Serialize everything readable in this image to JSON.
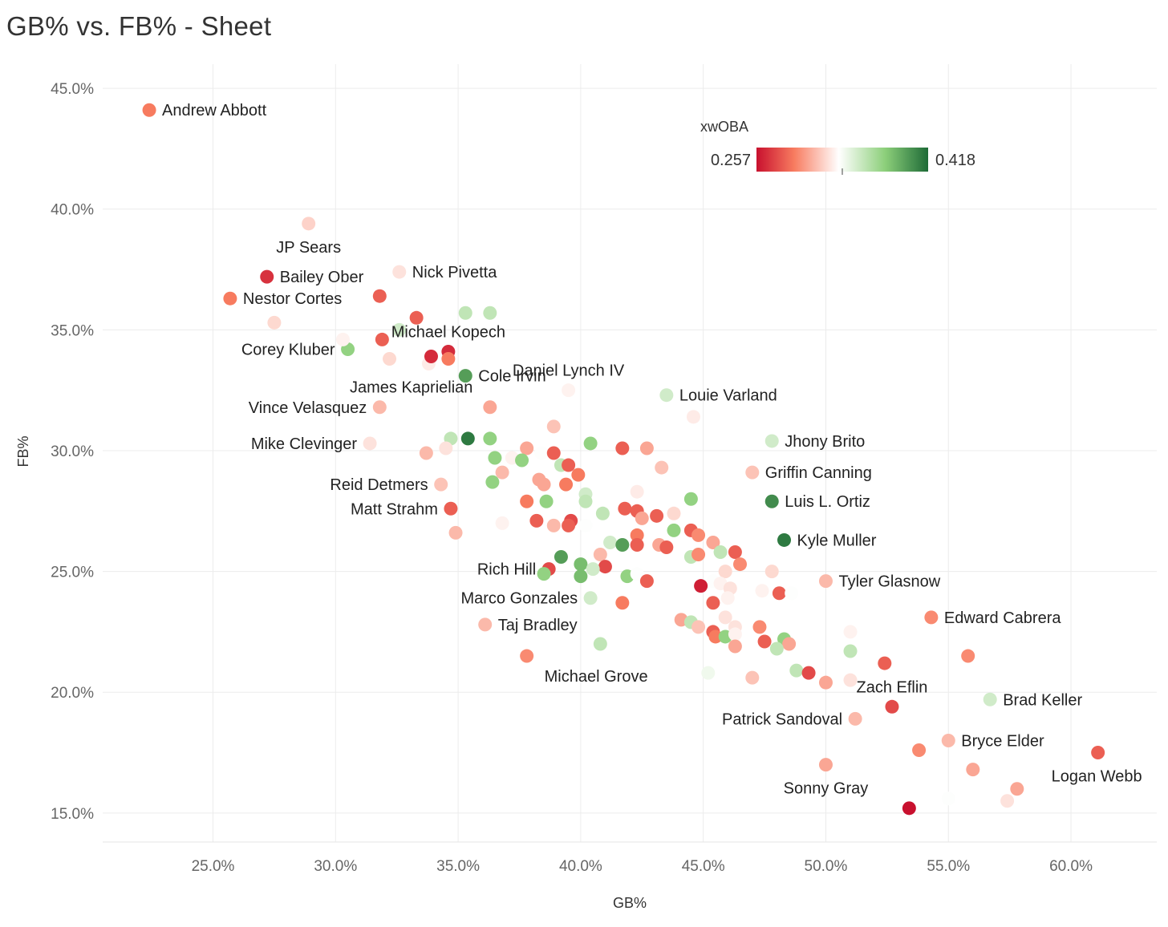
{
  "page": {
    "title": "GB% vs. FB% - Sheet"
  },
  "chart_data": {
    "type": "scatter",
    "title": "GB% vs. FB% - Sheet",
    "xlabel": "GB%",
    "ylabel": "FB%",
    "xlim": [
      20.5,
      63.5
    ],
    "ylim": [
      13.8,
      46.0
    ],
    "xticks": [
      25,
      30,
      35,
      40,
      45,
      50,
      55,
      60
    ],
    "yticks": [
      15,
      20,
      25,
      30,
      35,
      40,
      45
    ],
    "xtick_labels": [
      "25.0%",
      "30.0%",
      "35.0%",
      "40.0%",
      "45.0%",
      "50.0%",
      "55.0%",
      "60.0%"
    ],
    "ytick_labels": [
      "15.0%",
      "20.0%",
      "25.0%",
      "30.0%",
      "35.0%",
      "40.0%",
      "45.0%"
    ],
    "color_legend": {
      "title": "xwOBA",
      "min_label": "0.257",
      "max_label": "0.418",
      "min": 0.257,
      "max": 0.418,
      "colors": [
        "#c8102e",
        "#f87c60",
        "#ffffff",
        "#8ccf7a",
        "#1e6b37"
      ]
    },
    "points": [
      {
        "name": "Andrew Abbott",
        "gb": 22.4,
        "fb": 44.1,
        "xwoba": 0.292,
        "label": "Andrew Abbott",
        "anchor": "right"
      },
      {
        "name": "JP Sears",
        "gb": 28.9,
        "fb": 39.4,
        "xwoba": 0.32,
        "label": "JP Sears",
        "anchor": "below"
      },
      {
        "name": "Bailey Ober",
        "gb": 27.2,
        "fb": 37.2,
        "xwoba": 0.268,
        "label": "Bailey Ober",
        "anchor": "right"
      },
      {
        "name": "Nick Pivetta",
        "gb": 32.6,
        "fb": 37.4,
        "xwoba": 0.325,
        "label": "Nick Pivetta",
        "anchor": "right"
      },
      {
        "name": "Nestor Cortes",
        "gb": 25.7,
        "fb": 36.3,
        "xwoba": 0.292,
        "label": "Nestor Cortes",
        "anchor": "right"
      },
      {
        "name": "Michael Kopech",
        "gb": 34.6,
        "fb": 34.1,
        "xwoba": 0.266,
        "label": "Michael Kopech",
        "anchor": "above"
      },
      {
        "name": "Corey Kluber",
        "gb": 30.5,
        "fb": 34.2,
        "xwoba": 0.375,
        "label": "Corey Kluber",
        "anchor": "left"
      },
      {
        "name": "James Kaprielian",
        "gb": 33.8,
        "fb": 33.6,
        "xwoba": 0.328,
        "label": "James Kaprielian",
        "anchor": "below-left"
      },
      {
        "name": "Cole Irvin",
        "gb": 35.3,
        "fb": 33.1,
        "xwoba": 0.398,
        "label": "Cole Irvin",
        "anchor": "right"
      },
      {
        "name": "Daniel Lynch IV",
        "gb": 39.5,
        "fb": 32.5,
        "xwoba": 0.33,
        "label": "Daniel Lynch IV",
        "anchor": "above"
      },
      {
        "name": "Louie Varland",
        "gb": 43.5,
        "fb": 32.3,
        "xwoba": 0.352,
        "label": "Louie Varland",
        "anchor": "right"
      },
      {
        "name": "Vince Velasquez",
        "gb": 31.8,
        "fb": 31.8,
        "xwoba": 0.312,
        "label": "Vince Velasquez",
        "anchor": "left"
      },
      {
        "name": "Mike Clevinger",
        "gb": 31.4,
        "fb": 30.3,
        "xwoba": 0.325,
        "label": "Mike Clevinger",
        "anchor": "left"
      },
      {
        "name": "Jhony Brito",
        "gb": 47.8,
        "fb": 30.4,
        "xwoba": 0.352,
        "label": "Jhony Brito",
        "anchor": "right"
      },
      {
        "name": "Griffin Canning",
        "gb": 47.0,
        "fb": 29.1,
        "xwoba": 0.315,
        "label": "Griffin Canning",
        "anchor": "right"
      },
      {
        "name": "Reid Detmers",
        "gb": 34.3,
        "fb": 28.6,
        "xwoba": 0.315,
        "label": "Reid Detmers",
        "anchor": "left"
      },
      {
        "name": "Luis L. Ortiz",
        "gb": 47.8,
        "fb": 27.9,
        "xwoba": 0.405,
        "label": "Luis L. Ortiz",
        "anchor": "right"
      },
      {
        "name": "Matt Strahm",
        "gb": 34.7,
        "fb": 27.6,
        "xwoba": 0.283,
        "label": "Matt Strahm",
        "anchor": "left"
      },
      {
        "name": "Kyle Muller",
        "gb": 48.3,
        "fb": 26.3,
        "xwoba": 0.412,
        "label": "Kyle Muller",
        "anchor": "right"
      },
      {
        "name": "Rich Hill",
        "gb": 38.7,
        "fb": 25.1,
        "xwoba": 0.276,
        "label": "Rich Hill",
        "anchor": "left"
      },
      {
        "name": "Tyler Glasnow",
        "gb": 50.0,
        "fb": 24.6,
        "xwoba": 0.312,
        "label": "Tyler Glasnow",
        "anchor": "right"
      },
      {
        "name": "Marco Gonzales",
        "gb": 40.4,
        "fb": 23.9,
        "xwoba": 0.352,
        "label": "Marco Gonzales",
        "anchor": "left"
      },
      {
        "name": "Edward Cabrera",
        "gb": 54.3,
        "fb": 23.1,
        "xwoba": 0.297,
        "label": "Edward Cabrera",
        "anchor": "right"
      },
      {
        "name": "Taj Bradley",
        "gb": 36.1,
        "fb": 22.8,
        "xwoba": 0.312,
        "label": "Taj Bradley",
        "anchor": "right"
      },
      {
        "name": "Michael Grove",
        "gb": 37.8,
        "fb": 21.5,
        "xwoba": 0.297,
        "label": "Michael Grove",
        "anchor": "below-right"
      },
      {
        "name": "Zach Eflin",
        "gb": 52.7,
        "fb": 19.4,
        "xwoba": 0.276,
        "label": "Zach Eflin",
        "anchor": "above"
      },
      {
        "name": "Brad Keller",
        "gb": 56.7,
        "fb": 19.7,
        "xwoba": 0.352,
        "label": "Brad Keller",
        "anchor": "right"
      },
      {
        "name": "Patrick Sandoval",
        "gb": 51.2,
        "fb": 18.9,
        "xwoba": 0.312,
        "label": "Patrick Sandoval",
        "anchor": "left"
      },
      {
        "name": "Bryce Elder",
        "gb": 55.0,
        "fb": 18.0,
        "xwoba": 0.312,
        "label": "Bryce Elder",
        "anchor": "right"
      },
      {
        "name": "Logan Webb",
        "gb": 61.1,
        "fb": 17.5,
        "xwoba": 0.283,
        "label": "Logan Webb",
        "anchor": "below-left"
      },
      {
        "name": "Sonny Gray",
        "gb": 50.0,
        "fb": 17.0,
        "xwoba": 0.306,
        "label": "Sonny Gray",
        "anchor": "below"
      },
      {
        "gb": 27.5,
        "fb": 35.3,
        "xwoba": 0.322
      },
      {
        "gb": 31.8,
        "fb": 36.4,
        "xwoba": 0.283
      },
      {
        "gb": 33.3,
        "fb": 35.5,
        "xwoba": 0.283
      },
      {
        "gb": 35.3,
        "fb": 35.7,
        "xwoba": 0.358
      },
      {
        "gb": 36.3,
        "fb": 35.7,
        "xwoba": 0.358
      },
      {
        "gb": 32.6,
        "fb": 35.0,
        "xwoba": 0.352
      },
      {
        "gb": 30.3,
        "fb": 34.6,
        "xwoba": 0.33
      },
      {
        "gb": 31.9,
        "fb": 34.6,
        "xwoba": 0.283
      },
      {
        "gb": 32.2,
        "fb": 33.8,
        "xwoba": 0.322
      },
      {
        "gb": 33.9,
        "fb": 33.9,
        "xwoba": 0.266
      },
      {
        "gb": 34.6,
        "fb": 33.8,
        "xwoba": 0.292
      },
      {
        "gb": 36.3,
        "fb": 31.8,
        "xwoba": 0.306
      },
      {
        "gb": 44.6,
        "fb": 31.4,
        "xwoba": 0.328
      },
      {
        "gb": 38.9,
        "fb": 31.0,
        "xwoba": 0.315
      },
      {
        "gb": 34.7,
        "fb": 30.5,
        "xwoba": 0.358
      },
      {
        "gb": 35.4,
        "fb": 30.5,
        "xwoba": 0.412
      },
      {
        "gb": 36.3,
        "fb": 30.5,
        "xwoba": 0.375
      },
      {
        "gb": 34.5,
        "fb": 30.1,
        "xwoba": 0.325
      },
      {
        "gb": 33.7,
        "fb": 29.9,
        "xwoba": 0.312
      },
      {
        "gb": 36.5,
        "fb": 29.7,
        "xwoba": 0.375
      },
      {
        "gb": 37.2,
        "fb": 29.7,
        "xwoba": 0.33
      },
      {
        "gb": 37.8,
        "fb": 30.1,
        "xwoba": 0.306
      },
      {
        "gb": 38.4,
        "fb": 29.9,
        "xwoba": 0.335
      },
      {
        "gb": 38.9,
        "fb": 29.9,
        "xwoba": 0.283
      },
      {
        "gb": 40.4,
        "fb": 30.3,
        "xwoba": 0.375
      },
      {
        "gb": 41.7,
        "fb": 30.1,
        "xwoba": 0.283
      },
      {
        "gb": 42.7,
        "fb": 30.1,
        "xwoba": 0.306
      },
      {
        "gb": 37.6,
        "fb": 29.6,
        "xwoba": 0.375
      },
      {
        "gb": 36.8,
        "fb": 29.1,
        "xwoba": 0.312
      },
      {
        "gb": 39.2,
        "fb": 29.4,
        "xwoba": 0.358
      },
      {
        "gb": 39.5,
        "fb": 29.4,
        "xwoba": 0.283
      },
      {
        "gb": 39.9,
        "fb": 29.0,
        "xwoba": 0.292
      },
      {
        "gb": 43.3,
        "fb": 29.3,
        "xwoba": 0.315
      },
      {
        "gb": 36.4,
        "fb": 28.7,
        "xwoba": 0.375
      },
      {
        "gb": 38.3,
        "fb": 28.8,
        "xwoba": 0.306
      },
      {
        "gb": 38.5,
        "fb": 28.6,
        "xwoba": 0.306
      },
      {
        "gb": 39.4,
        "fb": 28.6,
        "xwoba": 0.292
      },
      {
        "gb": 40.2,
        "fb": 28.2,
        "xwoba": 0.352
      },
      {
        "gb": 42.3,
        "fb": 28.3,
        "xwoba": 0.328
      },
      {
        "gb": 37.8,
        "fb": 27.9,
        "xwoba": 0.292
      },
      {
        "gb": 38.6,
        "fb": 27.9,
        "xwoba": 0.375
      },
      {
        "gb": 40.2,
        "fb": 27.9,
        "xwoba": 0.358
      },
      {
        "gb": 41.8,
        "fb": 27.6,
        "xwoba": 0.283
      },
      {
        "gb": 42.3,
        "fb": 27.5,
        "xwoba": 0.283
      },
      {
        "gb": 40.9,
        "fb": 27.4,
        "xwoba": 0.358
      },
      {
        "gb": 43.1,
        "fb": 27.3,
        "xwoba": 0.283
      },
      {
        "gb": 43.8,
        "fb": 27.4,
        "xwoba": 0.322
      },
      {
        "gb": 44.5,
        "fb": 28.0,
        "xwoba": 0.375
      },
      {
        "gb": 38.2,
        "fb": 27.1,
        "xwoba": 0.283
      },
      {
        "gb": 39.6,
        "fb": 27.1,
        "xwoba": 0.276
      },
      {
        "gb": 42.5,
        "fb": 27.2,
        "xwoba": 0.306
      },
      {
        "gb": 36.8,
        "fb": 27.0,
        "xwoba": 0.33
      },
      {
        "gb": 38.9,
        "fb": 26.9,
        "xwoba": 0.312
      },
      {
        "gb": 39.5,
        "fb": 26.9,
        "xwoba": 0.283
      },
      {
        "gb": 40.2,
        "fb": 26.9,
        "xwoba": 0.335
      },
      {
        "gb": 34.9,
        "fb": 26.6,
        "xwoba": 0.312
      },
      {
        "gb": 43.8,
        "fb": 26.7,
        "xwoba": 0.375
      },
      {
        "gb": 44.5,
        "fb": 26.7,
        "xwoba": 0.283
      },
      {
        "gb": 44.8,
        "fb": 26.5,
        "xwoba": 0.297
      },
      {
        "gb": 42.3,
        "fb": 26.5,
        "xwoba": 0.292
      },
      {
        "gb": 41.2,
        "fb": 26.2,
        "xwoba": 0.352
      },
      {
        "gb": 41.7,
        "fb": 26.1,
        "xwoba": 0.398
      },
      {
        "gb": 42.3,
        "fb": 26.1,
        "xwoba": 0.283
      },
      {
        "gb": 43.2,
        "fb": 26.1,
        "xwoba": 0.306
      },
      {
        "gb": 43.5,
        "fb": 26.0,
        "xwoba": 0.283
      },
      {
        "gb": 45.4,
        "fb": 26.2,
        "xwoba": 0.306
      },
      {
        "gb": 45.7,
        "fb": 25.8,
        "xwoba": 0.358
      },
      {
        "gb": 46.3,
        "fb": 25.8,
        "xwoba": 0.283
      },
      {
        "gb": 40.8,
        "fb": 25.7,
        "xwoba": 0.312
      },
      {
        "gb": 39.2,
        "fb": 25.6,
        "xwoba": 0.398
      },
      {
        "gb": 44.5,
        "fb": 25.6,
        "xwoba": 0.358
      },
      {
        "gb": 44.8,
        "fb": 25.7,
        "xwoba": 0.297
      },
      {
        "gb": 46.5,
        "fb": 25.3,
        "xwoba": 0.297
      },
      {
        "gb": 40.0,
        "fb": 25.3,
        "xwoba": 0.385
      },
      {
        "gb": 41.0,
        "fb": 25.2,
        "xwoba": 0.276
      },
      {
        "gb": 40.5,
        "fb": 25.1,
        "xwoba": 0.352
      },
      {
        "gb": 45.9,
        "fb": 25.0,
        "xwoba": 0.322
      },
      {
        "gb": 47.8,
        "fb": 25.0,
        "xwoba": 0.322
      },
      {
        "gb": 38.5,
        "fb": 24.9,
        "xwoba": 0.375
      },
      {
        "gb": 40.0,
        "fb": 24.8,
        "xwoba": 0.385
      },
      {
        "gb": 41.9,
        "fb": 24.8,
        "xwoba": 0.375
      },
      {
        "gb": 42.3,
        "fb": 24.9,
        "xwoba": 0.335
      },
      {
        "gb": 42.7,
        "fb": 24.6,
        "xwoba": 0.283
      },
      {
        "gb": 45.4,
        "fb": 24.6,
        "xwoba": 0.335
      },
      {
        "gb": 45.7,
        "fb": 24.5,
        "xwoba": 0.33
      },
      {
        "gb": 44.9,
        "fb": 24.4,
        "xwoba": 0.262
      },
      {
        "gb": 46.1,
        "fb": 24.3,
        "xwoba": 0.325
      },
      {
        "gb": 47.4,
        "fb": 24.2,
        "xwoba": 0.33
      },
      {
        "gb": 48.1,
        "fb": 24.1,
        "xwoba": 0.283
      },
      {
        "gb": 48.6,
        "fb": 24.1,
        "xwoba": 0.335
      },
      {
        "gb": 46.0,
        "fb": 23.9,
        "xwoba": 0.33
      },
      {
        "gb": 41.7,
        "fb": 23.7,
        "xwoba": 0.292
      },
      {
        "gb": 45.4,
        "fb": 23.7,
        "xwoba": 0.283
      },
      {
        "gb": 45.9,
        "fb": 23.1,
        "xwoba": 0.325
      },
      {
        "gb": 44.1,
        "fb": 23.0,
        "xwoba": 0.306
      },
      {
        "gb": 44.5,
        "fb": 22.9,
        "xwoba": 0.358
      },
      {
        "gb": 44.8,
        "fb": 22.7,
        "xwoba": 0.315
      },
      {
        "gb": 46.3,
        "fb": 22.7,
        "xwoba": 0.325
      },
      {
        "gb": 47.3,
        "fb": 22.7,
        "xwoba": 0.297
      },
      {
        "gb": 51.0,
        "fb": 22.5,
        "xwoba": 0.33
      },
      {
        "gb": 45.4,
        "fb": 22.5,
        "xwoba": 0.283
      },
      {
        "gb": 45.5,
        "fb": 22.3,
        "xwoba": 0.292
      },
      {
        "gb": 45.9,
        "fb": 22.3,
        "xwoba": 0.375
      },
      {
        "gb": 46.3,
        "fb": 22.4,
        "xwoba": 0.33
      },
      {
        "gb": 47.5,
        "fb": 22.1,
        "xwoba": 0.283
      },
      {
        "gb": 48.3,
        "fb": 22.2,
        "xwoba": 0.375
      },
      {
        "gb": 48.5,
        "fb": 22.0,
        "xwoba": 0.306
      },
      {
        "gb": 40.8,
        "fb": 22.0,
        "xwoba": 0.358
      },
      {
        "gb": 46.3,
        "fb": 21.9,
        "xwoba": 0.306
      },
      {
        "gb": 48.0,
        "fb": 21.8,
        "xwoba": 0.358
      },
      {
        "gb": 51.0,
        "fb": 21.7,
        "xwoba": 0.358
      },
      {
        "gb": 55.8,
        "fb": 21.5,
        "xwoba": 0.297
      },
      {
        "gb": 52.4,
        "fb": 21.2,
        "xwoba": 0.283
      },
      {
        "gb": 48.8,
        "fb": 20.9,
        "xwoba": 0.358
      },
      {
        "gb": 45.2,
        "fb": 20.8,
        "xwoba": 0.34
      },
      {
        "gb": 49.3,
        "fb": 20.8,
        "xwoba": 0.276
      },
      {
        "gb": 47.0,
        "fb": 20.6,
        "xwoba": 0.315
      },
      {
        "gb": 50.0,
        "fb": 20.4,
        "xwoba": 0.306
      },
      {
        "gb": 51.0,
        "fb": 20.5,
        "xwoba": 0.325
      },
      {
        "gb": 53.8,
        "fb": 17.6,
        "xwoba": 0.297
      },
      {
        "gb": 56.0,
        "fb": 16.8,
        "xwoba": 0.306
      },
      {
        "gb": 57.8,
        "fb": 16.0,
        "xwoba": 0.306
      },
      {
        "gb": 55.0,
        "fb": 15.6,
        "xwoba": 0.335
      },
      {
        "gb": 57.4,
        "fb": 15.5,
        "xwoba": 0.325
      },
      {
        "gb": 53.4,
        "fb": 15.2,
        "xwoba": 0.257
      }
    ]
  }
}
